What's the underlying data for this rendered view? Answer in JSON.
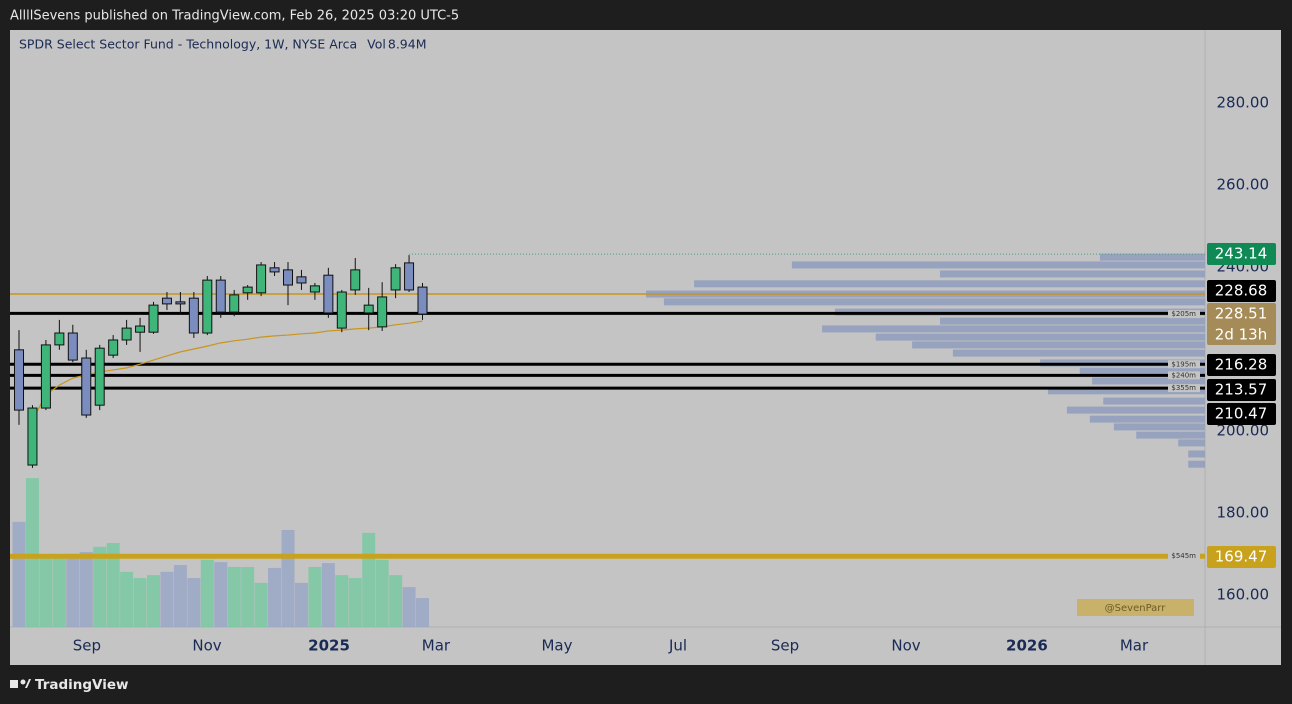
{
  "header": "AllllSevens published on TradingView.com, Feb 26, 2025 03:20 UTC-5",
  "footer": "TradingView",
  "chart_data": {
    "type": "candlestick",
    "title": "SPDR Select Sector Fund - Technology, 1W, NYSE Arca",
    "volume_label": "Vol",
    "volume_value": "8.94M",
    "watermark": "@SevenParr",
    "up_color": "#3fb57a",
    "down_color": "#7b8dbf",
    "ma_color": "#c8951e",
    "open": [
      219.8,
      191.7,
      205.6,
      221.0,
      223.9,
      217.8,
      206.3,
      218.5,
      222.2,
      224.1,
      224.1,
      232.4,
      231.5,
      232.4,
      223.9,
      236.8,
      229.0,
      233.7,
      233.7,
      239.8,
      239.3,
      237.6,
      233.9,
      238.0,
      225.1,
      234.4,
      228.8,
      225.4,
      234.4,
      241.0,
      235.1
    ],
    "high": [
      224.6,
      206.3,
      222.2,
      227.1,
      225.9,
      219.8,
      221.0,
      223.4,
      227.1,
      227.6,
      231.5,
      233.9,
      233.9,
      233.9,
      237.8,
      237.8,
      234.4,
      235.6,
      241.2,
      241.2,
      241.2,
      239.3,
      236.1,
      239.8,
      234.4,
      242.2,
      234.9,
      236.3,
      240.7,
      242.9,
      236.1
    ],
    "low": [
      201.5,
      191.0,
      205.1,
      219.8,
      216.8,
      203.2,
      205.1,
      217.8,
      221.0,
      219.3,
      223.7,
      229.5,
      228.3,
      222.7,
      223.4,
      227.6,
      228.0,
      232.0,
      232.9,
      237.8,
      230.7,
      234.4,
      232.0,
      227.6,
      224.1,
      233.2,
      224.6,
      224.4,
      232.4,
      233.9,
      227.1
    ],
    "close": [
      205.1,
      205.6,
      221.0,
      223.9,
      217.3,
      203.9,
      220.2,
      222.2,
      225.1,
      225.6,
      230.7,
      231.0,
      231.0,
      223.9,
      236.8,
      229.0,
      233.2,
      235.1,
      240.5,
      238.8,
      235.6,
      236.1,
      235.4,
      228.8,
      233.9,
      239.3,
      230.7,
      232.7,
      239.8,
      234.4,
      228.51
    ],
    "volume": [
      32.4,
      45.9,
      22.2,
      22.2,
      22.2,
      23.1,
      24.7,
      25.9,
      17.0,
      15.1,
      16.0,
      17.0,
      19.1,
      15.1,
      20.7,
      20.0,
      18.5,
      18.5,
      13.6,
      18.2,
      29.9,
      13.6,
      18.5,
      19.7,
      16.0,
      15.1,
      29.0,
      20.7,
      16.0,
      12.3,
      8.94
    ],
    "ma": [
      null,
      202.7,
      208.8,
      211.2,
      212.9,
      213.7,
      214.4,
      214.9,
      215.4,
      216.3,
      217.3,
      218.3,
      219.3,
      220.0,
      220.7,
      221.5,
      222.0,
      222.4,
      222.9,
      223.2,
      223.4,
      223.7,
      223.9,
      224.4,
      224.6,
      224.9,
      225.1,
      225.4,
      225.9,
      226.3,
      226.8
    ],
    "xlim": [
      -0.67,
      88.18
    ],
    "xticks": [
      {
        "value": 5.05,
        "label": "Sep"
      },
      {
        "value": 13.98,
        "label": "Nov"
      },
      {
        "value": 23.05,
        "label": "2025"
      },
      {
        "value": 31,
        "label": "Mar"
      },
      {
        "value": 40,
        "label": "May"
      },
      {
        "value": 49,
        "label": "Jul"
      },
      {
        "value": 56.95,
        "label": "Sep"
      },
      {
        "value": 65.95,
        "label": "Nov"
      },
      {
        "value": 74.94,
        "label": "2026"
      },
      {
        "value": 82.9,
        "label": "Mar"
      }
    ],
    "ylim": [
      152.2,
      297.8
    ],
    "yticks": [
      {
        "value": 160,
        "label": "160.00"
      },
      {
        "value": 180,
        "label": "180.00"
      },
      {
        "value": 200,
        "label": "200.00"
      },
      {
        "value": 240,
        "label": "240.00"
      },
      {
        "value": 260,
        "label": "260.00"
      },
      {
        "value": 280,
        "label": "280.00"
      }
    ],
    "volume_ylim": [
      0,
      184
    ],
    "guide_line": {
      "value": 233.4,
      "color": "#c8951e"
    },
    "levels": [
      {
        "value": 243.14,
        "color": "#0f8a55",
        "line": "dotted"
      },
      {
        "value": 228.68,
        "color": "#000000",
        "line": "solid"
      },
      {
        "value": 228.51,
        "color": "#a58b57",
        "countdown": "2d 13h",
        "note": "$205m"
      },
      {
        "value": 216.28,
        "color": "#000000",
        "line": "solid",
        "note": "$195m"
      },
      {
        "value": 213.57,
        "color": "#000000",
        "line": "solid",
        "note": "$240m"
      },
      {
        "value": 210.47,
        "color": "#000000",
        "line": "solid",
        "note": "$355m"
      },
      {
        "value": 169.47,
        "color": "#c9a21d",
        "line": "thick",
        "note": "$545m"
      }
    ],
    "volume_profile": {
      "color": "#8f9dbd",
      "xlim": [
        0,
        100
      ],
      "prices": [
        242.4,
        240.5,
        238.3,
        235.9,
        233.4,
        231.5,
        229.0,
        226.8,
        224.9,
        222.9,
        221.0,
        219.0,
        216.6,
        214.6,
        212.2,
        209.8,
        207.3,
        205.1,
        202.9,
        201.0,
        199.0,
        197.1,
        194.4,
        191.9
      ],
      "values": [
        18.8,
        73.9,
        47.4,
        91.4,
        100,
        96.8,
        66.2,
        47.4,
        68.5,
        58.9,
        52.4,
        45.1,
        29.5,
        22.4,
        20.2,
        28.1,
        18.2,
        24.7,
        20.6,
        16.3,
        12.3,
        4.8,
        3.0,
        3.0
      ]
    }
  }
}
